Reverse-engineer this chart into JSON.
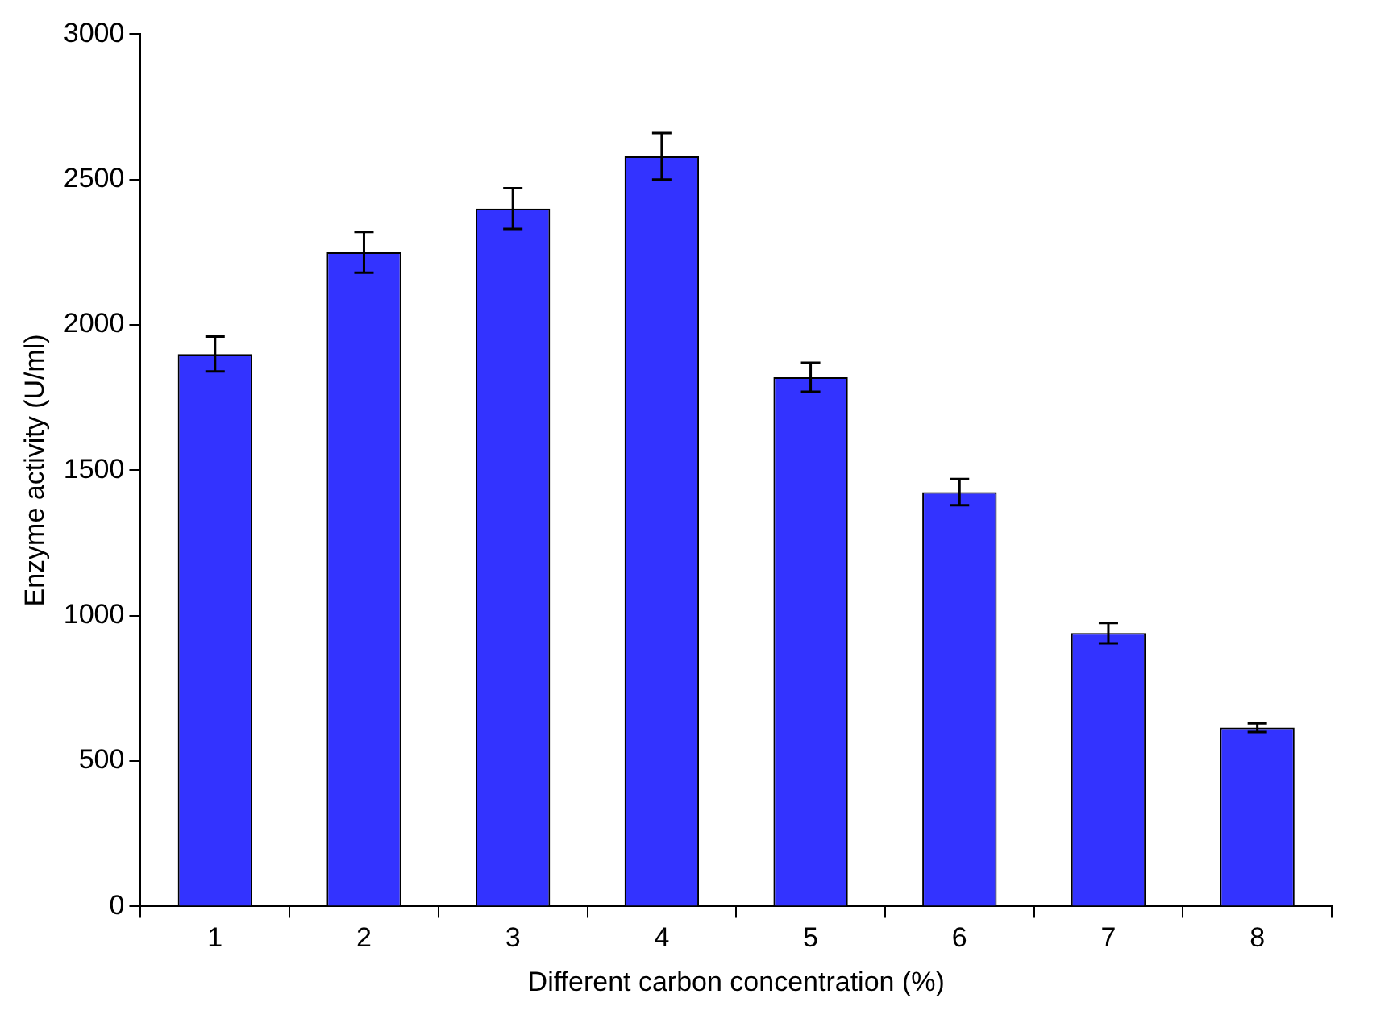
{
  "chart_data": {
    "type": "bar",
    "xlabel": "Different carbon concentration (%)",
    "ylabel": "Enzyme activity (U/ml)",
    "categories": [
      "1",
      "2",
      "3",
      "4",
      "5",
      "6",
      "7",
      "8"
    ],
    "values": [
      1900,
      2250,
      2400,
      2580,
      1820,
      1425,
      940,
      615
    ],
    "errors": [
      60,
      70,
      70,
      80,
      50,
      45,
      35,
      15
    ],
    "color": "#3333ff",
    "ylim": [
      0,
      3000
    ],
    "yticks": [
      0,
      500,
      1000,
      1500,
      2000,
      2500,
      3000
    ],
    "grid": false,
    "legend": false
  }
}
